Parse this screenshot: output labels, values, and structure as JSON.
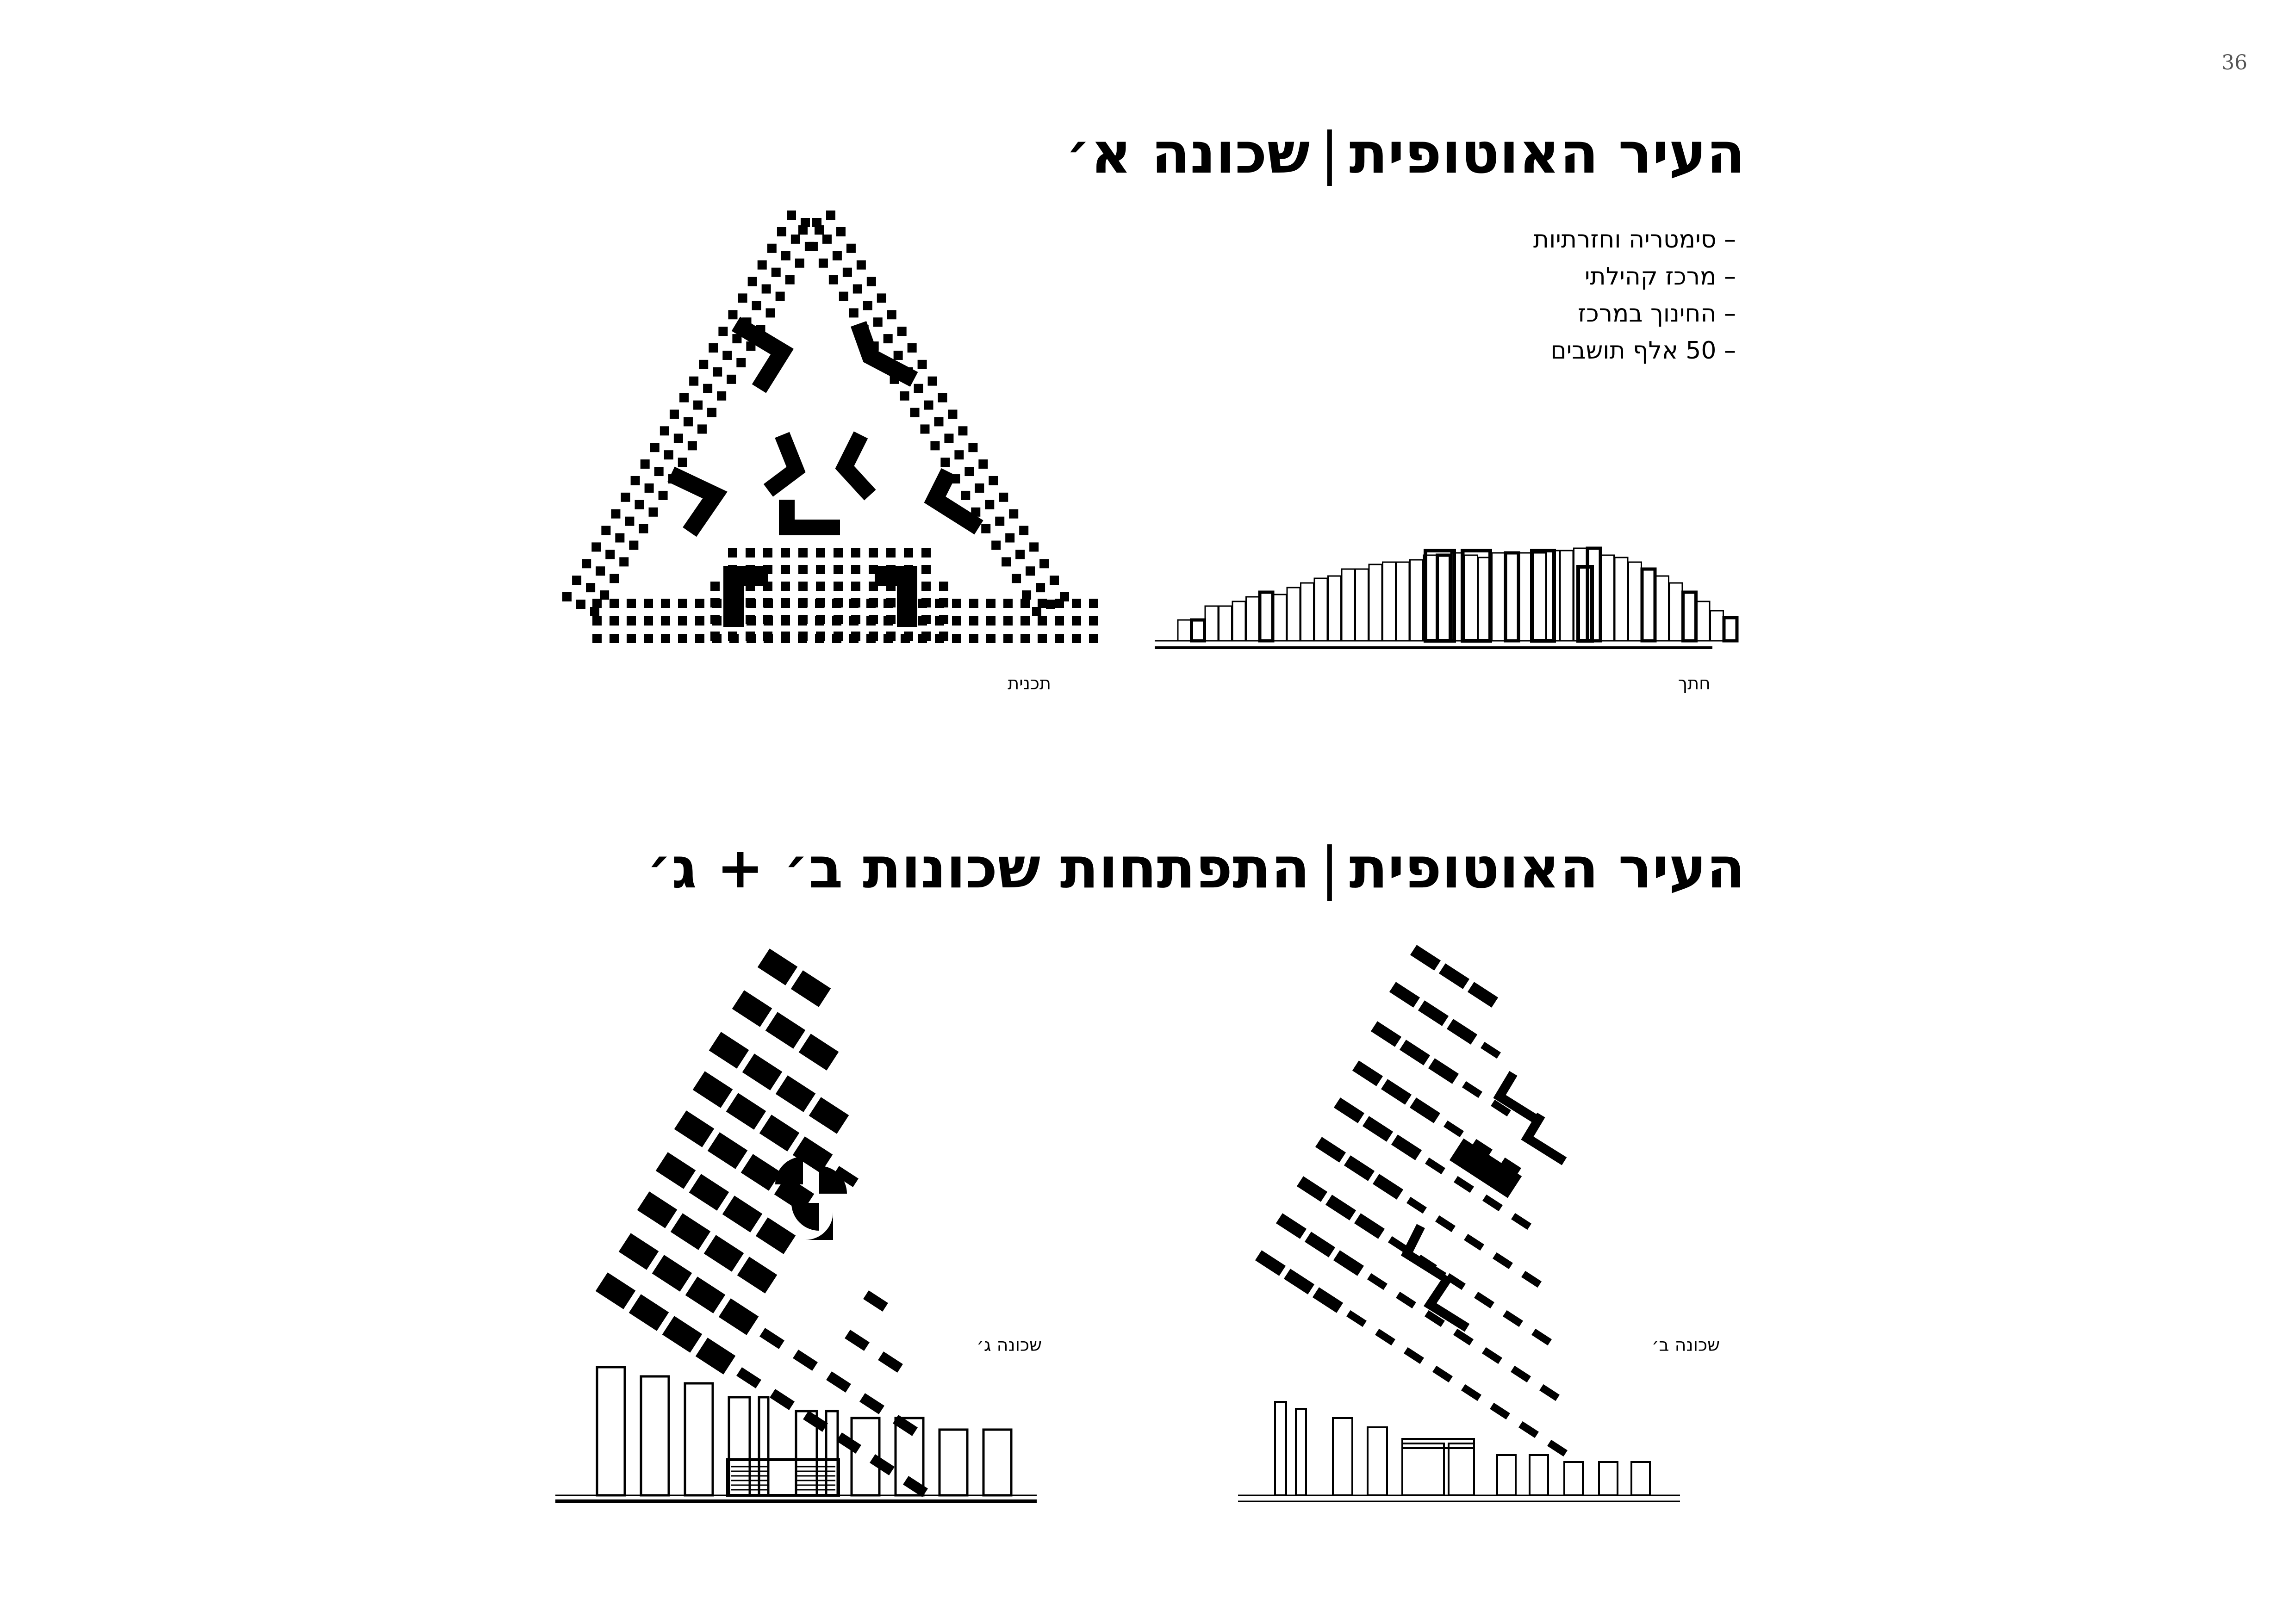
{
  "page_number": "36",
  "section_a": {
    "title_main": "העיר האוטופית",
    "title_sep": "|",
    "title_sub": "שכונה א׳",
    "bullets": [
      "סימטריה וחזרתיות",
      "מרכז קהילתי",
      "החינוך במרכז",
      "50 אלף תושבים"
    ],
    "plan_caption": "תכנית",
    "section_caption": "חתך"
  },
  "section_bc": {
    "title_main": "העיר האוטופית",
    "title_sep": "|",
    "title_sub": "התפתחות שכונות ב׳ + ג׳",
    "caption_c": "שכונה ג׳",
    "caption_b": "שכונה ב׳"
  },
  "colors": {
    "ink": "#000000",
    "paper": "#ffffff"
  }
}
